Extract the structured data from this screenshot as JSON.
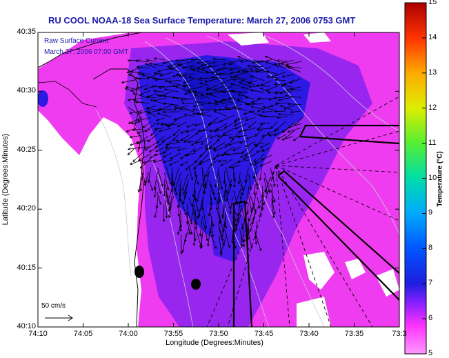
{
  "title": "RU COOL  NOAA-18  Sea Surface Temperature:  March 27, 2006 0753 GMT",
  "overlay": {
    "line1": "Raw Surface Current",
    "line2": "March 27, 2006 07:00 GMT"
  },
  "axes": {
    "xlabel": "Longitude (Degrees:Minutes)",
    "ylabel": "Latitude (Degrees:Minutes)",
    "x_ticks": [
      "74:10",
      "74:05",
      "74:00",
      "73:55",
      "73:50",
      "73:45",
      "73:40",
      "73:35",
      "73:3"
    ],
    "y_ticks": [
      "40:35",
      "40:30",
      "40:25",
      "40:20",
      "40:15",
      "40:10"
    ]
  },
  "scale_arrow": {
    "label": "50 cm/s"
  },
  "colorbar": {
    "label": "Temperature (°C)",
    "ticks": [
      "15",
      "14",
      "13",
      "12",
      "11",
      "10",
      "9",
      "8",
      "7",
      "6",
      "5"
    ],
    "min": 5,
    "max": 15
  },
  "colors": {
    "title": "#1a1aa8",
    "sst_cold": "#ff33ff",
    "sst_mid": "#3b1adc",
    "land": "#ffffff"
  }
}
